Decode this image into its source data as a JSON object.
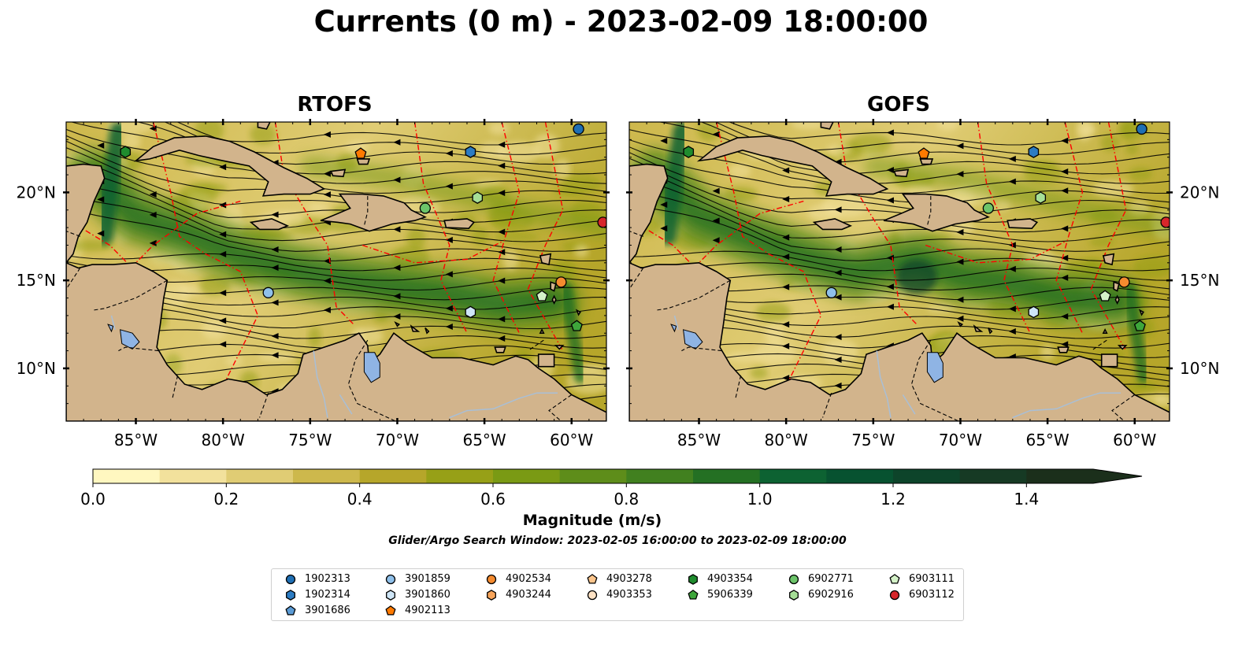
{
  "title": "Currents (0 m) - 2023-02-09 18:00:00",
  "subtitle": "Glider/Argo Search Window: 2023-02-05 16:00:00 to 2023-02-09 18:00:00",
  "colors": {
    "land": "#d2b48c",
    "lake": "#8fb4e4",
    "river": "#a9bfd6",
    "eez": "#ff0000",
    "border": "#000000"
  },
  "chart_data": [
    {
      "type": "heatmap",
      "title": "RTOFS",
      "x_ticks": [
        "85°W",
        "80°W",
        "75°W",
        "70°W",
        "65°W",
        "60°W"
      ],
      "y_ticks": [
        "20°N",
        "15°N",
        "10°N"
      ],
      "xlim": [
        -89,
        -58
      ],
      "ylim": [
        7,
        24
      ],
      "y_axis_side": "left"
    },
    {
      "type": "heatmap",
      "title": "GOFS",
      "x_ticks": [
        "85°W",
        "80°W",
        "75°W",
        "70°W",
        "65°W",
        "60°W"
      ],
      "y_ticks": [
        "20°N",
        "15°N",
        "10°N"
      ],
      "xlim": [
        -89,
        -58
      ],
      "ylim": [
        7,
        24
      ],
      "y_axis_side": "right"
    }
  ],
  "colorbar": {
    "label": "Magnitude (m/s)",
    "ticks": [
      "0.0",
      "0.2",
      "0.4",
      "0.6",
      "0.8",
      "1.0",
      "1.2",
      "1.4"
    ],
    "range": [
      0,
      1.5
    ],
    "extend": "max",
    "colors": [
      "#fff7c0",
      "#f2e19c",
      "#e0cc74",
      "#cdb84c",
      "#b6a62a",
      "#97a017",
      "#7a9a14",
      "#5e8d1a",
      "#41801f",
      "#247023",
      "#0d6232",
      "#075230",
      "#0d442a",
      "#163a24",
      "#1b2f1b"
    ]
  },
  "legend": [
    {
      "id": "1902313",
      "marker": "circle",
      "color": "#1f6fb4"
    },
    {
      "id": "1902314",
      "marker": "hexagon",
      "color": "#2c7cc3"
    },
    {
      "id": "3901686",
      "marker": "pentagon",
      "color": "#5b9bd5"
    },
    {
      "id": "3901859",
      "marker": "circle",
      "color": "#8fc0ea"
    },
    {
      "id": "3901860",
      "marker": "hexagon",
      "color": "#cfe6f7"
    },
    {
      "id": "4902113",
      "marker": "pentagon",
      "color": "#ff7a00"
    },
    {
      "id": "4902534",
      "marker": "circle",
      "color": "#f58b2f"
    },
    {
      "id": "4903244",
      "marker": "hexagon",
      "color": "#f7a45a"
    },
    {
      "id": "4903278",
      "marker": "pentagon",
      "color": "#fcc58c"
    },
    {
      "id": "4903353",
      "marker": "circle",
      "color": "#fde2c4"
    },
    {
      "id": "4903354",
      "marker": "hexagon",
      "color": "#1f8c2e"
    },
    {
      "id": "5906339",
      "marker": "pentagon",
      "color": "#3ea63b"
    },
    {
      "id": "6902771",
      "marker": "circle",
      "color": "#6cc46a"
    },
    {
      "id": "6902916",
      "marker": "hexagon",
      "color": "#a6df97"
    },
    {
      "id": "6903111",
      "marker": "pentagon",
      "color": "#d4f2c8"
    },
    {
      "id": "6903112",
      "marker": "circle",
      "color": "#d7262b"
    }
  ],
  "floats": [
    {
      "id": "1902313",
      "lon": -59.6,
      "lat": 23.6
    },
    {
      "id": "4902113",
      "lon": -72.1,
      "lat": 22.2
    },
    {
      "id": "1902314",
      "lon": -65.8,
      "lat": 22.3
    },
    {
      "id": "4903354",
      "lon": -85.6,
      "lat": 22.3
    },
    {
      "id": "6902771",
      "lon": -68.4,
      "lat": 19.1
    },
    {
      "id": "6902916",
      "lon": -65.4,
      "lat": 19.7
    },
    {
      "id": "6903112",
      "lon": -58.2,
      "lat": 18.3
    },
    {
      "id": "4902534",
      "lon": -60.6,
      "lat": 14.9
    },
    {
      "id": "3901859",
      "lon": -77.4,
      "lat": 14.3
    },
    {
      "id": "6903111",
      "lon": -61.7,
      "lat": 14.1
    },
    {
      "id": "3901860",
      "lon": -65.8,
      "lat": 13.2
    },
    {
      "id": "5906339",
      "lon": -59.7,
      "lat": 12.4
    }
  ]
}
